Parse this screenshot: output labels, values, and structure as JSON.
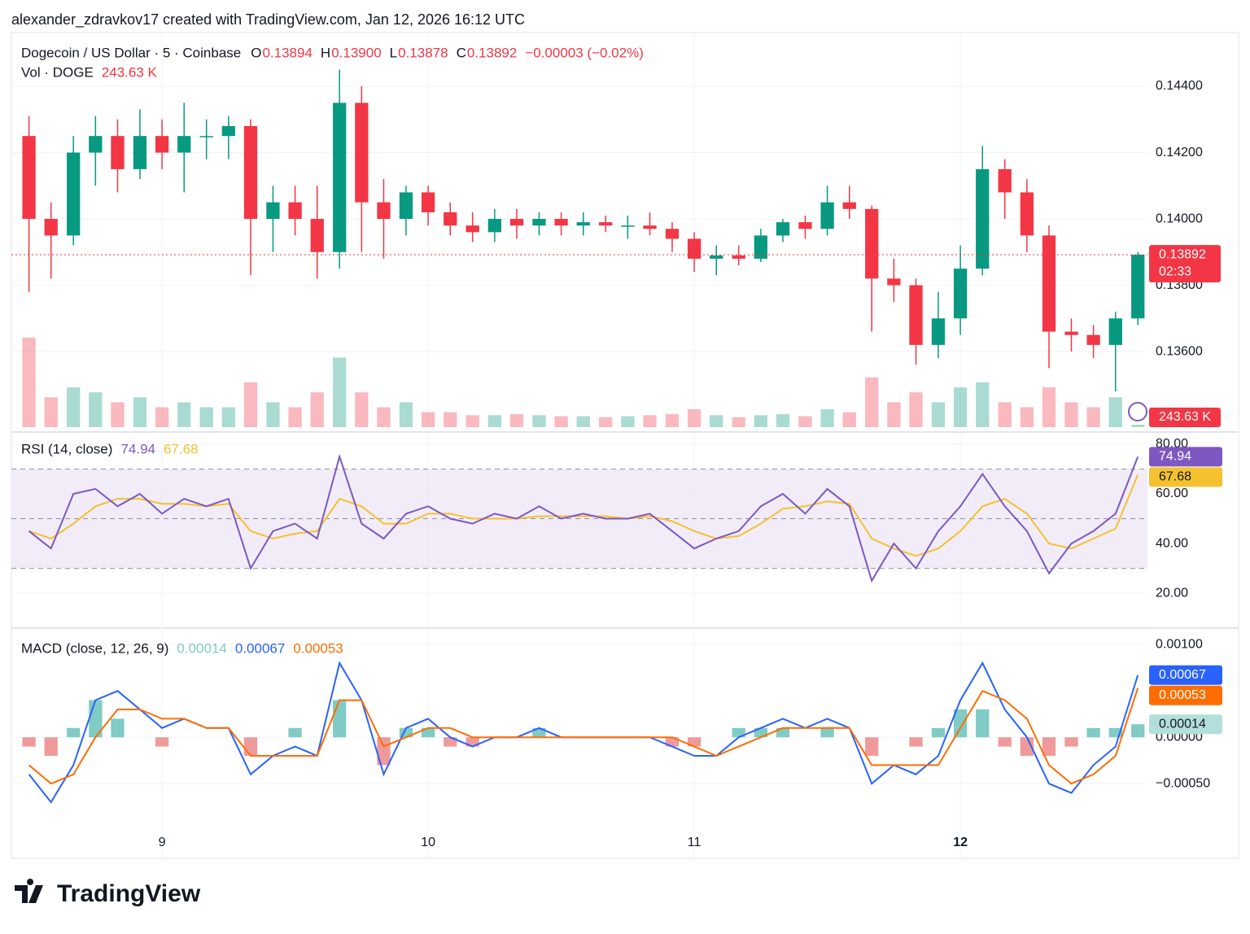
{
  "header": {
    "attribution": "alexander_zdravkov17 created with TradingView.com, Jan 12, 2026 16:12 UTC"
  },
  "footer": {
    "brand": "TradingView"
  },
  "chart_data": [
    {
      "type": "candlestick",
      "title": "Dogecoin / US Dollar · 5 · Coinbase",
      "ohlc_labels": [
        "O",
        "H",
        "L",
        "C"
      ],
      "ohlc_values": [
        "0.13894",
        "0.13900",
        "0.13878",
        "0.13892"
      ],
      "change": "−0.00003 (−0.02%)",
      "volume_title": "Vol · DOGE",
      "volume_value": "243.63 K",
      "countdown": "02:33",
      "up_color": "#089981",
      "down_color": "#f23645",
      "grid": true,
      "x": [
        8.5,
        8.583,
        8.667,
        8.75,
        8.833,
        8.917,
        9,
        9.083,
        9.167,
        9.25,
        9.333,
        9.417,
        9.5,
        9.583,
        9.667,
        9.75,
        9.833,
        9.917,
        10,
        10.083,
        10.167,
        10.25,
        10.333,
        10.417,
        10.5,
        10.583,
        10.667,
        10.75,
        10.833,
        10.917,
        11,
        11.083,
        11.167,
        11.25,
        11.333,
        11.417,
        11.5,
        11.583,
        11.667,
        11.75,
        11.833,
        11.917,
        12,
        12.083,
        12.167,
        12.25,
        12.333,
        12.417,
        12.5,
        12.583,
        12.667
      ],
      "open": [
        0.1425,
        0.14,
        0.1395,
        0.142,
        0.1425,
        0.1415,
        0.1425,
        0.142,
        0.1425,
        0.1425,
        0.1428,
        0.14,
        0.1405,
        0.14,
        0.139,
        0.1435,
        0.1405,
        0.14,
        0.1408,
        0.1402,
        0.1398,
        0.1396,
        0.14,
        0.1398,
        0.14,
        0.1398,
        0.1399,
        0.1398,
        0.1398,
        0.1397,
        0.1394,
        0.1388,
        0.1389,
        0.1388,
        0.1395,
        0.1399,
        0.1397,
        0.1405,
        0.1403,
        0.1382,
        0.138,
        0.1362,
        0.137,
        0.1385,
        0.1415,
        0.1408,
        0.1395,
        0.1366,
        0.1365,
        0.1362,
        0.137
      ],
      "high": [
        0.1431,
        0.1405,
        0.1425,
        0.1431,
        0.143,
        0.1433,
        0.143,
        0.1435,
        0.143,
        0.1431,
        0.143,
        0.141,
        0.141,
        0.141,
        0.1445,
        0.144,
        0.1412,
        0.141,
        0.141,
        0.1405,
        0.1402,
        0.1403,
        0.1403,
        0.1402,
        0.1402,
        0.1402,
        0.1401,
        0.1401,
        0.1402,
        0.1399,
        0.1396,
        0.1392,
        0.1392,
        0.1397,
        0.14,
        0.1401,
        0.141,
        0.141,
        0.1404,
        0.1388,
        0.1382,
        0.1378,
        0.1392,
        0.1422,
        0.1418,
        0.1412,
        0.1398,
        0.137,
        0.1368,
        0.1372,
        0.139
      ],
      "low": [
        0.1378,
        0.1382,
        0.1392,
        0.141,
        0.1408,
        0.1412,
        0.1415,
        0.1408,
        0.1418,
        0.1418,
        0.1383,
        0.139,
        0.1395,
        0.1382,
        0.1385,
        0.139,
        0.1388,
        0.1395,
        0.1398,
        0.1395,
        0.1393,
        0.1393,
        0.1394,
        0.1395,
        0.1395,
        0.1395,
        0.1396,
        0.1394,
        0.1395,
        0.139,
        0.1384,
        0.1383,
        0.1386,
        0.1387,
        0.1393,
        0.1394,
        0.1395,
        0.14,
        0.1366,
        0.1375,
        0.1356,
        0.1358,
        0.1365,
        0.1383,
        0.14,
        0.139,
        0.1355,
        0.136,
        0.1358,
        0.1348,
        0.1368
      ],
      "close": [
        0.14,
        0.1395,
        0.142,
        0.1425,
        0.1415,
        0.1425,
        0.142,
        0.1425,
        0.1425,
        0.1428,
        0.14,
        0.1405,
        0.14,
        0.139,
        0.1435,
        0.1405,
        0.14,
        0.1408,
        0.1402,
        0.1398,
        0.1396,
        0.14,
        0.1398,
        0.14,
        0.1398,
        0.1399,
        0.1398,
        0.1398,
        0.1397,
        0.1394,
        0.1388,
        0.1389,
        0.1388,
        0.1395,
        0.1399,
        0.1397,
        0.1405,
        0.1403,
        0.1382,
        0.138,
        0.1362,
        0.137,
        0.1385,
        0.1415,
        0.1408,
        0.1395,
        0.1366,
        0.1365,
        0.1362,
        0.137,
        0.13892
      ],
      "volume": [
        9000,
        3000,
        4000,
        3500,
        2500,
        3000,
        2000,
        2500,
        2000,
        2000,
        4500,
        2500,
        2000,
        3500,
        7000,
        3500,
        2000,
        2500,
        1500,
        1500,
        1200,
        1200,
        1300,
        1200,
        1100,
        1100,
        1000,
        1100,
        1200,
        1300,
        1800,
        1200,
        1000,
        1200,
        1300,
        1100,
        1800,
        1500,
        5000,
        2500,
        3500,
        2500,
        4000,
        4500,
        2500,
        2000,
        4000,
        2500,
        2000,
        3000,
        243.63
      ],
      "xlim": [
        8.434,
        12.703
      ],
      "xticks": [
        9,
        10,
        11,
        12
      ],
      "ylim": [
        0.13372,
        0.14562
      ],
      "yticks": [
        {
          "value": 0.136,
          "label": "0.13600"
        },
        {
          "value": 0.138,
          "label": "0.13800"
        },
        {
          "value": 0.14,
          "label": "0.14000"
        },
        {
          "value": 0.142,
          "label": "0.14200"
        },
        {
          "value": 0.144,
          "label": "0.14400"
        }
      ]
    },
    {
      "type": "line",
      "title": "RSI (14, close)",
      "legend_values": [
        "74.94",
        "67.68"
      ],
      "bands": [
        30,
        70
      ],
      "midline": 50,
      "band_color": "#ede7f6",
      "series": [
        {
          "color": "#7e57c2",
          "values": [
            45,
            38,
            60,
            62,
            55,
            60,
            52,
            58,
            55,
            58,
            30,
            45,
            48,
            42,
            75,
            48,
            42,
            52,
            55,
            50,
            48,
            52,
            50,
            55,
            50,
            52,
            50,
            50,
            52,
            45,
            38,
            42,
            45,
            55,
            60,
            52,
            62,
            55,
            25,
            40,
            30,
            45,
            55,
            68,
            55,
            45,
            28,
            40,
            45,
            52,
            74.94
          ]
        },
        {
          "color": "#f5c12e",
          "values": [
            45,
            42,
            48,
            55,
            58,
            58,
            56,
            56,
            55,
            56,
            45,
            42,
            44,
            45,
            58,
            55,
            48,
            48,
            52,
            52,
            50,
            50,
            50,
            51,
            51,
            51,
            51,
            50,
            51,
            49,
            45,
            42,
            43,
            48,
            54,
            55,
            57,
            56,
            42,
            38,
            35,
            38,
            45,
            55,
            58,
            52,
            40,
            38,
            42,
            46,
            67.68
          ]
        }
      ],
      "ylim": [
        6.6,
        83.6
      ],
      "yticks": [
        {
          "value": 20,
          "label": "20.00"
        },
        {
          "value": 40,
          "label": "40.00"
        },
        {
          "value": 60,
          "label": "60.00"
        },
        {
          "value": 80,
          "label": "80.00"
        }
      ]
    },
    {
      "type": "combo",
      "title": "MACD (close, 12, 26, 9)",
      "legend_values": [
        "0.00014",
        "0.00067",
        "0.00053"
      ],
      "histogram": {
        "up_color": "#80cbc4",
        "down_color": "#ef9a9a",
        "values": [
          -0.0001,
          -0.0002,
          0.0001,
          0.0004,
          0.0002,
          0,
          -0.0001,
          0,
          0,
          0,
          -0.0002,
          0,
          0.0001,
          0,
          0.0004,
          0,
          -0.0003,
          0.0001,
          0.0001,
          -0.0001,
          -0.0001,
          0,
          0,
          0.0001,
          0,
          0,
          0,
          0,
          0,
          -0.0001,
          -0.0001,
          0,
          0.0001,
          0.0001,
          0.0001,
          0,
          0.0001,
          0,
          -0.0002,
          0,
          -0.0001,
          0.0001,
          0.0003,
          0.0003,
          -0.0001,
          -0.0002,
          -0.0002,
          -0.0001,
          0.0001,
          0.0001,
          0.00014
        ]
      },
      "series": [
        {
          "color": "#2962ff",
          "values": [
            -0.0004,
            -0.0007,
            -0.0003,
            0.0004,
            0.0005,
            0.0003,
            0.0001,
            0.0002,
            0.0001,
            0.0001,
            -0.0004,
            -0.0002,
            -0.0001,
            -0.0002,
            0.0008,
            0.0004,
            -0.0004,
            0.0001,
            0.0002,
            0,
            -0.0001,
            0,
            0,
            0.0001,
            0,
            0,
            0,
            0,
            0,
            -0.0001,
            -0.0002,
            -0.0002,
            0,
            0.0001,
            0.0002,
            0.0001,
            0.0002,
            0.0001,
            -0.0005,
            -0.0003,
            -0.0004,
            -0.0002,
            0.0004,
            0.0008,
            0.0003,
            0,
            -0.0005,
            -0.0006,
            -0.0003,
            -0.0001,
            0.00067
          ]
        },
        {
          "color": "#ff6d00",
          "values": [
            -0.0003,
            -0.0005,
            -0.0004,
            0,
            0.0003,
            0.0003,
            0.0002,
            0.0002,
            0.0001,
            0.0001,
            -0.0002,
            -0.0002,
            -0.0002,
            -0.0002,
            0.0004,
            0.0004,
            -0.0001,
            0,
            0.0001,
            0.0001,
            0,
            0,
            0,
            0,
            0,
            0,
            0,
            0,
            0,
            0,
            -0.0001,
            -0.0002,
            -0.0001,
            0,
            0.0001,
            0.0001,
            0.0001,
            0.0001,
            -0.0003,
            -0.0003,
            -0.0003,
            -0.0003,
            0.0001,
            0.0005,
            0.0004,
            0.0002,
            -0.0003,
            -0.0005,
            -0.0004,
            -0.0002,
            0.00053
          ]
        }
      ],
      "ylim": [
        -0.00091,
        0.00115
      ],
      "yticks": [
        {
          "value": -0.0005,
          "label": "−0.00050"
        },
        {
          "value": 0,
          "label": "0.00000"
        },
        {
          "value": 0.001,
          "label": "0.00100"
        }
      ]
    }
  ]
}
